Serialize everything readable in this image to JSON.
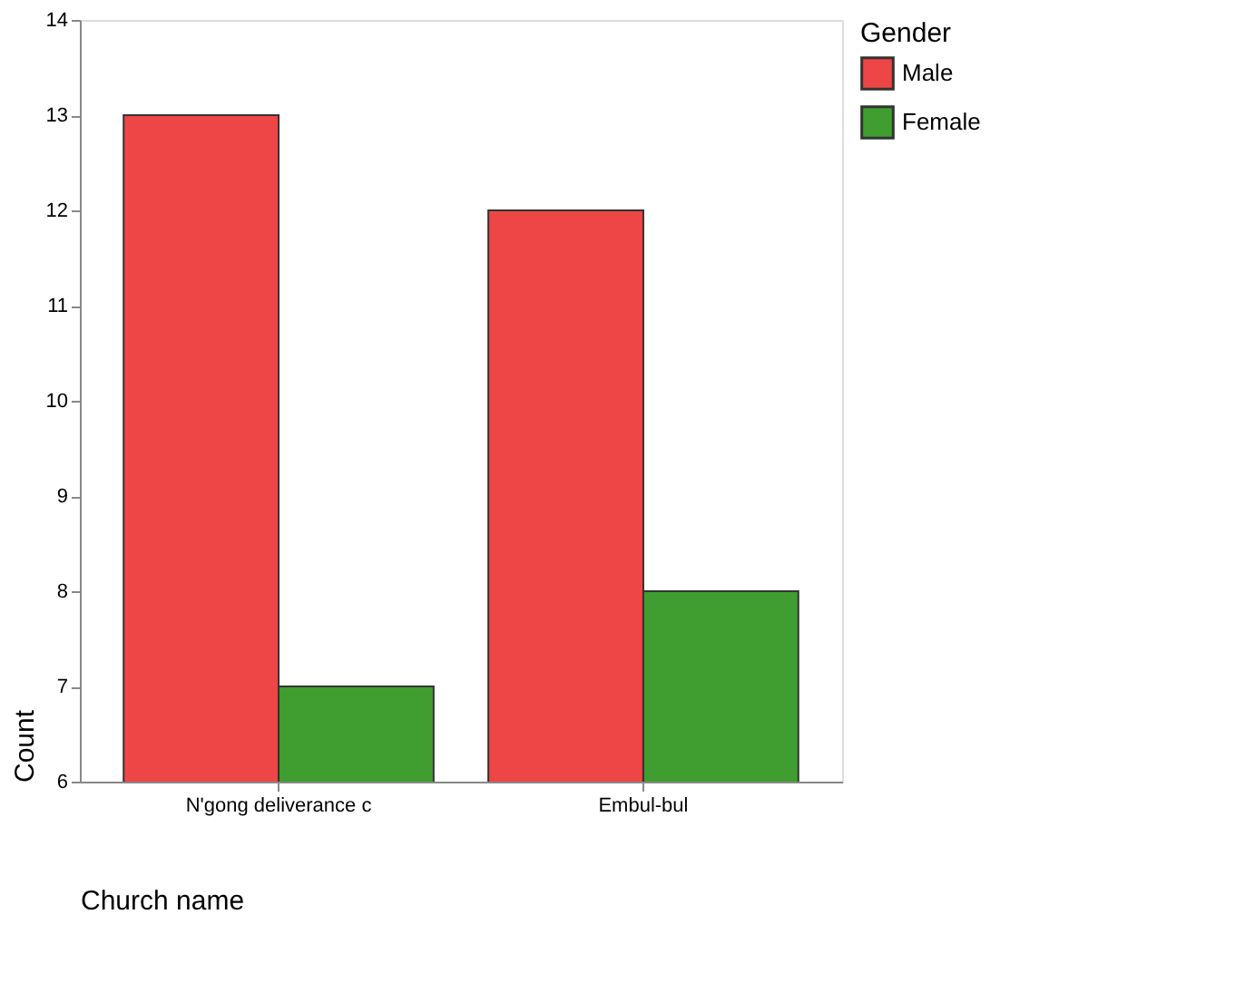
{
  "chart_data": {
    "type": "bar",
    "xlabel": "Church name",
    "ylabel": "Count",
    "legend_title": "Gender",
    "categories": [
      "N'gong deliverance c",
      "Embul-bul"
    ],
    "series": [
      {
        "name": "Male",
        "color": "#ee4646",
        "values": [
          13,
          12
        ]
      },
      {
        "name": "Female",
        "color": "#3f9e2f",
        "values": [
          7,
          8
        ]
      }
    ],
    "ylim": [
      6,
      14
    ],
    "yticks": [
      6,
      7,
      8,
      9,
      10,
      11,
      12,
      13,
      14
    ],
    "grid": false,
    "legend": "right"
  }
}
